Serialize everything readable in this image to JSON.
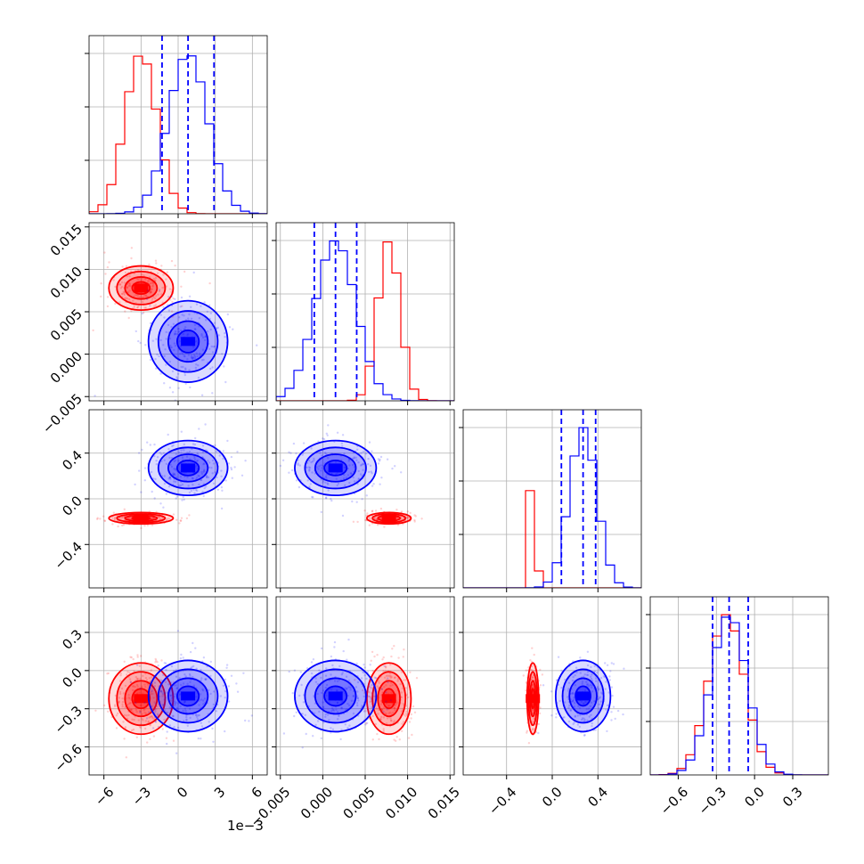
{
  "chart_data": {
    "type": "corner",
    "title": "",
    "parameters": [
      {
        "ticks": [
          -6,
          -3,
          0,
          3,
          6
        ],
        "tick_labels": [
          "−6",
          "−3",
          "0",
          "3",
          "6"
        ],
        "range": [
          -7.2,
          7.2
        ],
        "offset_label": "1e−3"
      },
      {
        "ticks": [
          -0.005,
          0.0,
          0.005,
          0.01,
          0.015
        ],
        "tick_labels": [
          "−0.005",
          "0.000",
          "0.005",
          "0.010",
          "0.015"
        ],
        "range": [
          -0.0055,
          0.0155
        ]
      },
      {
        "ticks": [
          -0.4,
          0.0,
          0.4
        ],
        "tick_labels": [
          "−0.4",
          "0.0",
          "0.4"
        ],
        "range": [
          -0.78,
          0.78
        ]
      },
      {
        "ticks": [
          -0.6,
          -0.3,
          0.0,
          0.3
        ],
        "tick_labels": [
          "−0.6",
          "−0.3",
          "0.0",
          "0.3"
        ],
        "range": [
          -0.82,
          0.58
        ]
      }
    ],
    "series": [
      {
        "color": "#ff0000",
        "means": [
          -3.0,
          0.0078,
          -0.17,
          -0.22
        ],
        "stds": [
          1.3,
          0.0013,
          0.025,
          0.14
        ],
        "show_quantiles": false
      },
      {
        "color": "#0000ff",
        "means": [
          0.8,
          0.0015,
          0.27,
          -0.2
        ],
        "stds": [
          1.6,
          0.0024,
          0.12,
          0.14
        ],
        "quantiles": [
          [
            -1.3,
            0.8,
            2.9
          ],
          [
            -0.001,
            0.0015,
            0.004
          ],
          [
            0.08,
            0.27,
            0.38
          ],
          [
            -0.33,
            -0.2,
            -0.05
          ]
        ],
        "show_quantiles": true
      }
    ],
    "grid": true
  }
}
